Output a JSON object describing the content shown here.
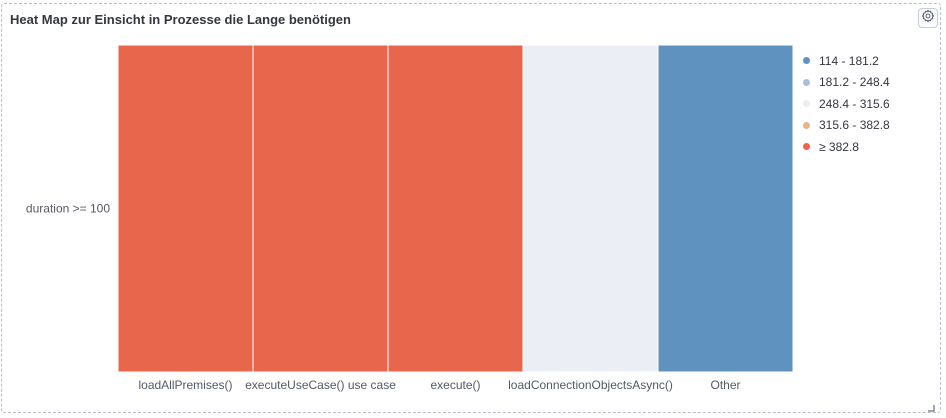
{
  "panel": {
    "title": "Heat Map zur Einsicht in Prozesse die Lange benötigen",
    "settings_icon": "gear-icon",
    "resize_icon": "resize-corner-icon"
  },
  "chart_data": {
    "type": "heatmap",
    "title": "Heat Map zur Einsicht in Prozesse die Lange benötigen",
    "xlabel": "",
    "ylabel": "",
    "x_categories": [
      "loadAllPremises()",
      "executeUseCase() use case",
      "execute()",
      "loadConnectionObjectsAsync()",
      "Other"
    ],
    "y_categories": [
      "duration >= 100"
    ],
    "cells": [
      {
        "x": "loadAllPremises()",
        "y": "duration >= 100",
        "range": "≥ 382.8"
      },
      {
        "x": "executeUseCase() use case",
        "y": "duration >= 100",
        "range": "≥ 382.8"
      },
      {
        "x": "execute()",
        "y": "duration >= 100",
        "range": "≥ 382.8"
      },
      {
        "x": "loadConnectionObjectsAsync()",
        "y": "duration >= 100",
        "range": "248.4 - 315.6"
      },
      {
        "x": "Other",
        "y": "duration >= 100",
        "range": "114 - 181.2"
      }
    ],
    "legend_position": "right",
    "legend": [
      {
        "label": "114 - 181.2",
        "color": "#6092c0"
      },
      {
        "label": "181.2 - 248.4",
        "color": "#a8bfda"
      },
      {
        "label": "248.4 - 315.6",
        "color": "#ebeff5"
      },
      {
        "label": "315.6 - 382.8",
        "color": "#ecb385"
      },
      {
        "label": "≥ 382.8",
        "color": "#e7664c"
      }
    ]
  }
}
